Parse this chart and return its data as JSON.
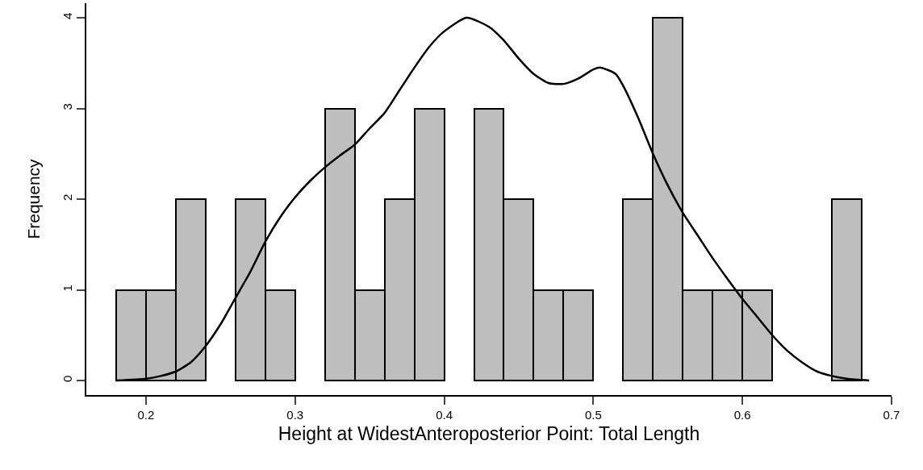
{
  "chart_data": {
    "type": "histogram",
    "xlabel": "Height at WidestAnteroposterior Point: Total Length",
    "ylabel": "Frequency",
    "bins": [
      0.18,
      0.2,
      0.22,
      0.24,
      0.26,
      0.28,
      0.3,
      0.32,
      0.34,
      0.36,
      0.38,
      0.4,
      0.42,
      0.44,
      0.46,
      0.48,
      0.5,
      0.52,
      0.54,
      0.56,
      0.58,
      0.6,
      0.62,
      0.64,
      0.66,
      0.68
    ],
    "values": [
      1,
      1,
      2,
      0,
      2,
      1,
      0,
      3,
      1,
      2,
      3,
      0,
      3,
      2,
      1,
      1,
      0,
      2,
      4,
      1,
      1,
      1,
      0,
      0,
      2
    ],
    "color": "#bebebe",
    "series": [
      {
        "type": "line",
        "color": "#000000",
        "x": [
          0.18,
          0.2,
          0.21,
          0.22,
          0.23,
          0.24,
          0.25,
          0.26,
          0.27,
          0.28,
          0.29,
          0.3,
          0.31,
          0.32,
          0.33,
          0.34,
          0.35,
          0.36,
          0.37,
          0.38,
          0.39,
          0.4,
          0.415,
          0.43,
          0.44,
          0.45,
          0.46,
          0.47,
          0.48,
          0.49,
          0.5,
          0.505,
          0.515,
          0.52,
          0.53,
          0.54,
          0.55,
          0.56,
          0.57,
          0.58,
          0.59,
          0.6,
          0.61,
          0.62,
          0.63,
          0.64,
          0.65,
          0.66,
          0.67,
          0.685
        ],
        "values": [
          0,
          0.02,
          0.05,
          0.1,
          0.2,
          0.38,
          0.62,
          0.91,
          1.2,
          1.53,
          1.8,
          2.02,
          2.2,
          2.35,
          2.48,
          2.6,
          2.78,
          2.95,
          3.2,
          3.45,
          3.68,
          3.85,
          4.0,
          3.9,
          3.75,
          3.55,
          3.38,
          3.28,
          3.27,
          3.33,
          3.43,
          3.45,
          3.38,
          3.25,
          2.9,
          2.5,
          2.15,
          1.85,
          1.6,
          1.35,
          1.12,
          0.9,
          0.7,
          0.5,
          0.33,
          0.2,
          0.1,
          0.05,
          0.02,
          0
        ]
      }
    ],
    "xlim": [
      0.16,
      0.7
    ],
    "xticks": [
      0.2,
      0.3,
      0.4,
      0.5,
      0.6,
      0.7
    ],
    "ylim": [
      -0.16,
      4.16
    ],
    "yticks": [
      0,
      1,
      2,
      3,
      4
    ],
    "grid": false
  }
}
